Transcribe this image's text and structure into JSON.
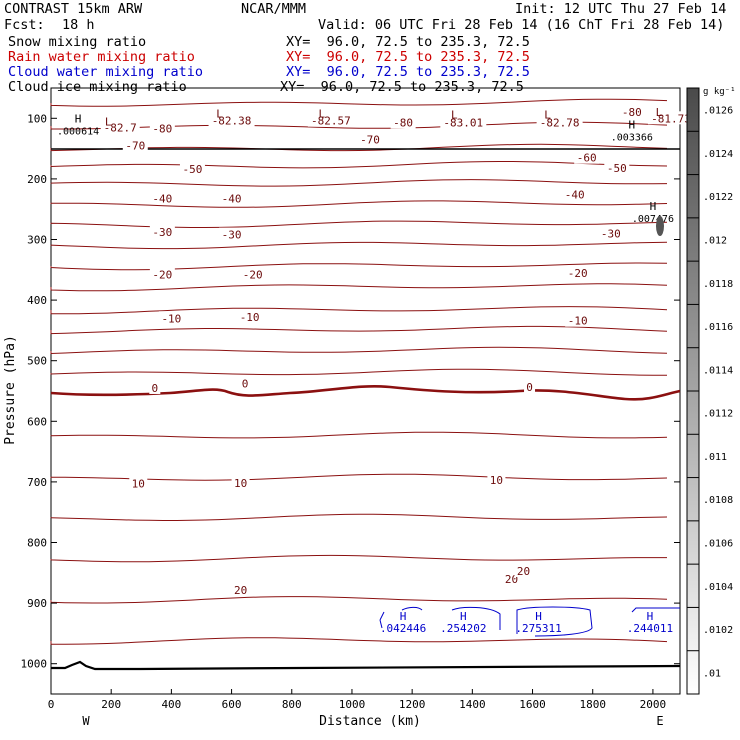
{
  "header": {
    "model": "CONTRAST 15km ARW",
    "org": "NCAR/MMM",
    "init": "Init: 12 UTC Thu 27 Feb 14",
    "fcst_label": "Fcst:",
    "fcst_value": "18 h",
    "valid": "Valid: 06 UTC Fri 28 Feb 14 (16 ChT Fri 28 Feb 14)",
    "fields": [
      {
        "name": "Snow mixing ratio",
        "xy": "XY=  96.0, 72.5 to 235.3, 72.5",
        "color": "#000000"
      },
      {
        "name": "Rain water mixing ratio",
        "xy": "XY=  96.0, 72.5 to 235.3, 72.5",
        "color": "#cc0000"
      },
      {
        "name": "Cloud water mixing ratio",
        "xy": "XY=  96.0, 72.5 to 235.3, 72.5",
        "color": "#0000cc"
      },
      {
        "name": "Cloud ice mixing ratio",
        "xy": "XY=  96.0, 72.5 to 235.3, 72.5",
        "color": "#000000"
      }
    ]
  },
  "chart_data": {
    "type": "cross-section contour",
    "xlabel": "Distance (km)",
    "ylabel": "Pressure (hPa)",
    "xlim": [
      0,
      2090
    ],
    "ylim": [
      1050,
      50
    ],
    "x_ticks": [
      0,
      200,
      400,
      600,
      800,
      1000,
      1200,
      1400,
      1600,
      1800,
      2000
    ],
    "y_ticks": [
      100,
      200,
      300,
      400,
      500,
      600,
      700,
      800,
      900,
      1000
    ],
    "endpoint_labels": [
      "W",
      "E"
    ],
    "temperature_labels": [
      {
        "text": "-82.7",
        "x": 230,
        "p": 115
      },
      {
        "text": "-80",
        "x": 370,
        "p": 117
      },
      {
        "text": "-82.38",
        "x": 600,
        "p": 104
      },
      {
        "text": "-82.57",
        "x": 930,
        "p": 104
      },
      {
        "text": "-80",
        "x": 1170,
        "p": 107
      },
      {
        "text": "-83.01",
        "x": 1370,
        "p": 107
      },
      {
        "text": "-82.78",
        "x": 1690,
        "p": 107
      },
      {
        "text": "-80",
        "x": 1930,
        "p": 90
      },
      {
        "text": "-81.73",
        "x": 2060,
        "p": 100
      },
      {
        "text": "-70",
        "x": 280,
        "p": 145
      },
      {
        "text": "-70",
        "x": 1060,
        "p": 135
      },
      {
        "text": "-60",
        "x": 1780,
        "p": 165
      },
      {
        "text": "-50",
        "x": 470,
        "p": 184
      },
      {
        "text": "-50",
        "x": 1880,
        "p": 182
      },
      {
        "text": "-40",
        "x": 370,
        "p": 232
      },
      {
        "text": "-40",
        "x": 600,
        "p": 232
      },
      {
        "text": "-40",
        "x": 1740,
        "p": 226
      },
      {
        "text": "-30",
        "x": 370,
        "p": 288
      },
      {
        "text": "-30",
        "x": 600,
        "p": 292
      },
      {
        "text": "-30",
        "x": 1860,
        "p": 290
      },
      {
        "text": "-20",
        "x": 370,
        "p": 358
      },
      {
        "text": "-20",
        "x": 670,
        "p": 358
      },
      {
        "text": "-20",
        "x": 1750,
        "p": 355
      },
      {
        "text": "-10",
        "x": 400,
        "p": 430
      },
      {
        "text": "-10",
        "x": 660,
        "p": 428
      },
      {
        "text": "-10",
        "x": 1750,
        "p": 434
      },
      {
        "text": "0",
        "x": 345,
        "p": 545
      },
      {
        "text": "0",
        "x": 645,
        "p": 538
      },
      {
        "text": "0",
        "x": 1590,
        "p": 543
      },
      {
        "text": "10",
        "x": 290,
        "p": 703
      },
      {
        "text": "10",
        "x": 630,
        "p": 702
      },
      {
        "text": "10",
        "x": 1480,
        "p": 697
      },
      {
        "text": "20",
        "x": 630,
        "p": 878
      },
      {
        "text": "20",
        "x": 1530,
        "p": 860
      },
      {
        "text": "20",
        "x": 1570,
        "p": 847
      }
    ],
    "extrema": [
      {
        "kind": "L",
        "x": 190,
        "p": 105
      },
      {
        "kind": "L",
        "x": 560,
        "p": 92
      },
      {
        "kind": "L",
        "x": 900,
        "p": 92
      },
      {
        "kind": "L",
        "x": 1340,
        "p": 94
      },
      {
        "kind": "L",
        "x": 1650,
        "p": 94
      },
      {
        "kind": "L",
        "x": 2020,
        "p": 90
      },
      {
        "kind": "H",
        "x": 90,
        "p": 100,
        "value": ".000614"
      },
      {
        "kind": "H",
        "x": 1930,
        "p": 110,
        "value": ".003366"
      },
      {
        "kind": "H",
        "x": 2000,
        "p": 245,
        "value": ".007476"
      }
    ],
    "cloud_water_maxima": [
      {
        "kind": "H",
        "x": 1170,
        "p": 938,
        "value": ".042446"
      },
      {
        "kind": "H",
        "x": 1370,
        "p": 938,
        "value": ".254202"
      },
      {
        "kind": "H",
        "x": 1620,
        "p": 938,
        "value": ".275311"
      },
      {
        "kind": "H",
        "x": 1990,
        "p": 938,
        "value": ".244011"
      }
    ],
    "colorbar": {
      "unit": "g kg⁻¹",
      "ticks": [
        ".01",
        ".0102",
        ".0104",
        ".0106",
        ".0108",
        ".011",
        ".0112",
        ".0114",
        ".0116",
        ".0118",
        ".012",
        ".0122",
        ".0124",
        ".0126"
      ]
    }
  }
}
